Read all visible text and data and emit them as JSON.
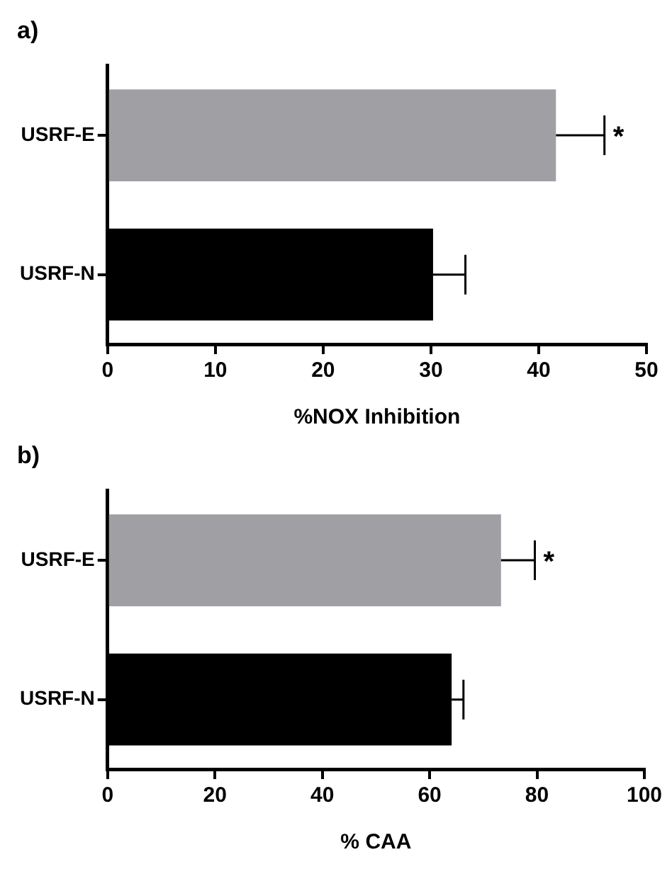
{
  "chart_data": [
    {
      "type": "bar",
      "title": "a)",
      "orientation": "horizontal",
      "categories": [
        "USRF-E",
        "USRF-N"
      ],
      "values": [
        41.6,
        30.2
      ],
      "colors": [
        "#a0a0a4",
        "#000000"
      ],
      "errors": [
        4.5,
        3.0
      ],
      "xlim": [
        0,
        50
      ],
      "xticks": [
        0,
        10,
        20,
        30,
        40,
        50
      ],
      "xlabel": "%NOX Inhibition",
      "grid": false,
      "legend": false,
      "annotations": [
        {
          "text": "*",
          "x": 46.1,
          "y": "USRF-E"
        }
      ]
    },
    {
      "type": "bar",
      "title": "b)",
      "orientation": "horizontal",
      "categories": [
        "USRF-E",
        "USRF-N"
      ],
      "values": [
        73.3,
        64.1
      ],
      "colors": [
        "#a0a0a4",
        "#000000"
      ],
      "errors": [
        6.3,
        2.2
      ],
      "xlim": [
        0,
        100
      ],
      "xticks": [
        0,
        20,
        40,
        60,
        80,
        100
      ],
      "xlabel": "% CAA",
      "grid": false,
      "legend": false,
      "annotations": [
        {
          "text": "*",
          "x": 79.6,
          "y": "USRF-E"
        }
      ]
    }
  ]
}
